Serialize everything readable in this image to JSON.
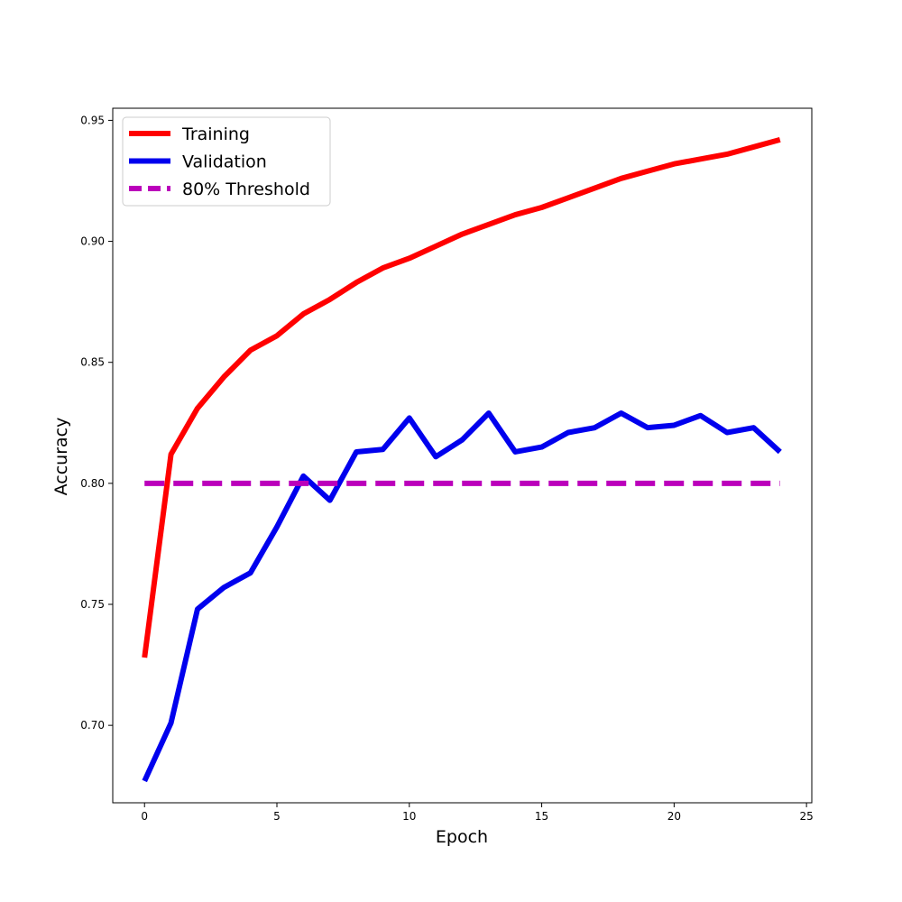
{
  "chart_data": {
    "type": "line",
    "title": "",
    "xlabel": "Epoch",
    "ylabel": "Accuracy",
    "xlim": [
      -1.2,
      25.2
    ],
    "ylim": [
      0.668,
      0.955
    ],
    "x_ticks": [
      0,
      5,
      10,
      15,
      20,
      25
    ],
    "y_ticks": [
      0.7,
      0.75,
      0.8,
      0.85,
      0.9,
      0.95
    ],
    "grid": false,
    "legend_position": "top-left",
    "x": [
      0,
      1,
      2,
      3,
      4,
      5,
      6,
      7,
      8,
      9,
      10,
      11,
      12,
      13,
      14,
      15,
      16,
      17,
      18,
      19,
      20,
      21,
      22,
      23,
      24
    ],
    "series": [
      {
        "name": "Training",
        "color": "#ff0000",
        "style": "solid",
        "values": [
          0.728,
          0.812,
          0.831,
          0.844,
          0.855,
          0.861,
          0.87,
          0.876,
          0.883,
          0.889,
          0.893,
          0.898,
          0.903,
          0.907,
          0.911,
          0.914,
          0.918,
          0.922,
          0.926,
          0.929,
          0.932,
          0.934,
          0.936,
          0.939,
          0.942
        ]
      },
      {
        "name": "Validation",
        "color": "#0000ee",
        "style": "solid",
        "values": [
          0.677,
          0.701,
          0.748,
          0.757,
          0.763,
          0.782,
          0.803,
          0.793,
          0.813,
          0.814,
          0.827,
          0.811,
          0.818,
          0.829,
          0.813,
          0.815,
          0.821,
          0.823,
          0.829,
          0.823,
          0.824,
          0.828,
          0.821,
          0.823,
          0.813
        ]
      },
      {
        "name": "80% Threshold",
        "color": "#bb00bb",
        "style": "dashed",
        "values": [
          0.8,
          0.8,
          0.8,
          0.8,
          0.8,
          0.8,
          0.8,
          0.8,
          0.8,
          0.8,
          0.8,
          0.8,
          0.8,
          0.8,
          0.8,
          0.8,
          0.8,
          0.8,
          0.8,
          0.8,
          0.8,
          0.8,
          0.8,
          0.8,
          0.8
        ]
      }
    ]
  }
}
